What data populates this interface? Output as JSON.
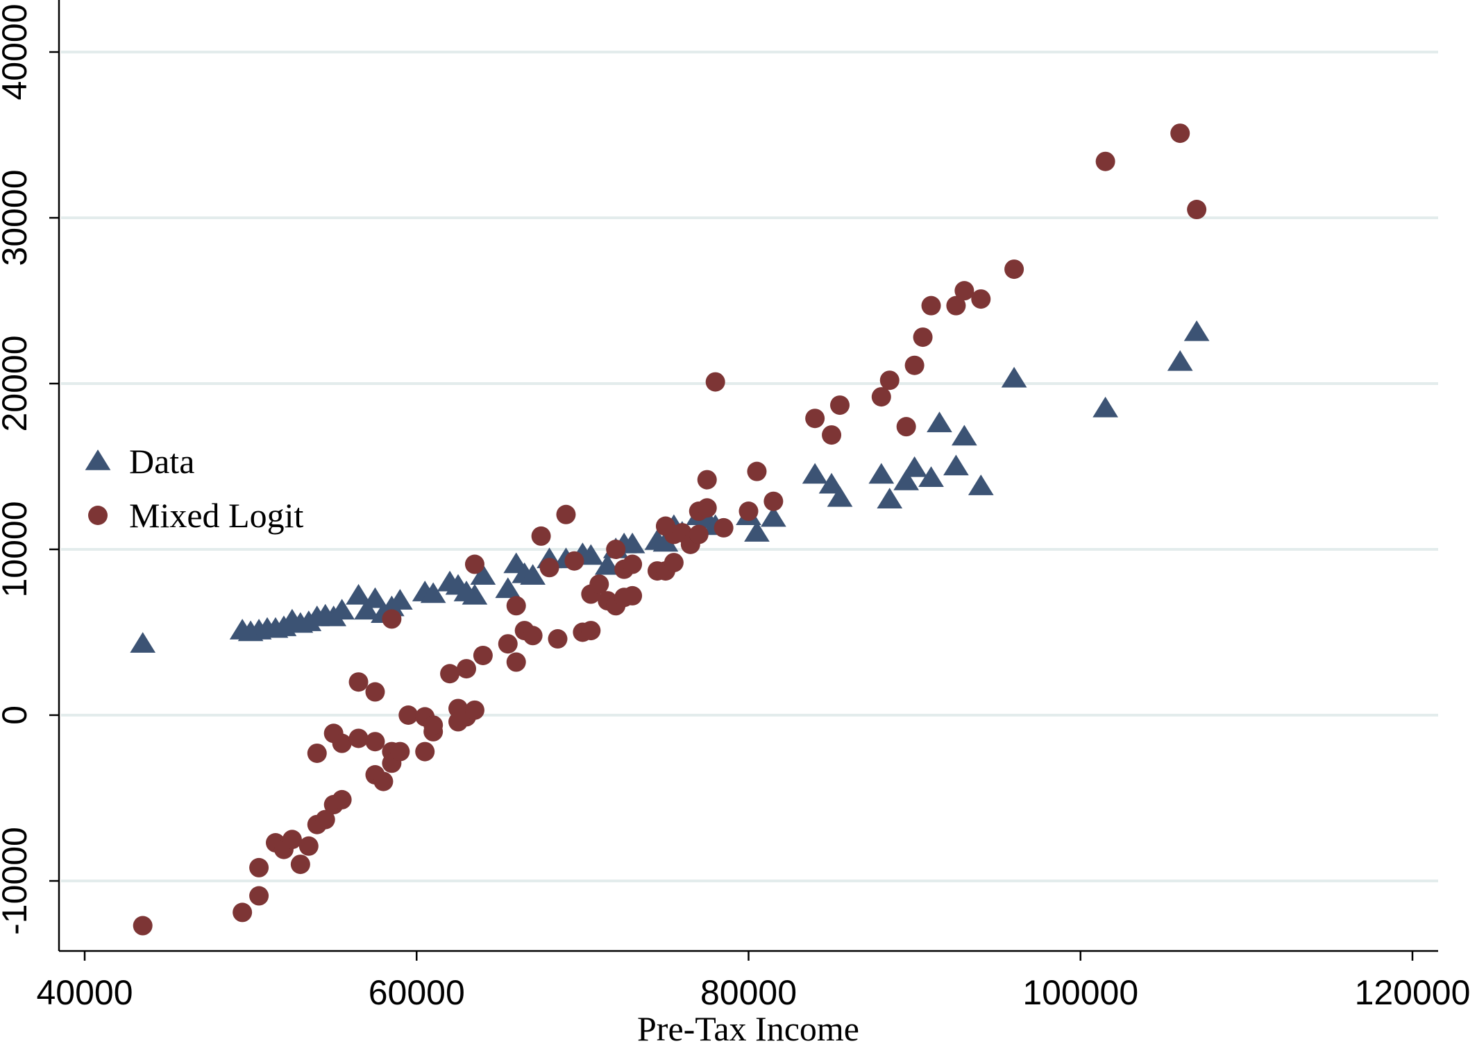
{
  "chart_data": {
    "type": "scatter",
    "title": "",
    "xlabel": "Pre-Tax Income",
    "ylabel": "",
    "xlim": [
      38000,
      122000
    ],
    "ylim": [
      -13900,
      42000
    ],
    "x_ticks": [
      40000,
      60000,
      80000,
      100000,
      120000
    ],
    "y_ticks": [
      -10000,
      0,
      10000,
      20000,
      30000,
      40000
    ],
    "grid": "horizontal",
    "legend_position": "left",
    "series": [
      {
        "name": "Data",
        "marker": "triangle",
        "color": "#3c5374",
        "points": [
          [
            43500,
            4300
          ],
          [
            49500,
            5100
          ],
          [
            50000,
            5000
          ],
          [
            50500,
            5100
          ],
          [
            51000,
            5200
          ],
          [
            51500,
            5200
          ],
          [
            52000,
            5300
          ],
          [
            52500,
            5700
          ],
          [
            53000,
            5500
          ],
          [
            53500,
            5600
          ],
          [
            54000,
            5900
          ],
          [
            54500,
            6000
          ],
          [
            55000,
            5900
          ],
          [
            55500,
            6300
          ],
          [
            56500,
            7200
          ],
          [
            57000,
            6300
          ],
          [
            57500,
            7000
          ],
          [
            58000,
            6100
          ],
          [
            58500,
            6500
          ],
          [
            59000,
            6900
          ],
          [
            60500,
            7400
          ],
          [
            61000,
            7300
          ],
          [
            62000,
            8000
          ],
          [
            62500,
            7800
          ],
          [
            63000,
            7400
          ],
          [
            63500,
            7200
          ],
          [
            64000,
            8400
          ],
          [
            65500,
            7600
          ],
          [
            66000,
            9100
          ],
          [
            66500,
            8500
          ],
          [
            67000,
            8400
          ],
          [
            68000,
            9400
          ],
          [
            69000,
            9400
          ],
          [
            70000,
            9700
          ],
          [
            70500,
            9600
          ],
          [
            71500,
            9000
          ],
          [
            72000,
            10000
          ],
          [
            72500,
            10300
          ],
          [
            73000,
            10300
          ],
          [
            74500,
            10500
          ],
          [
            75000,
            10400
          ],
          [
            75500,
            11400
          ],
          [
            76000,
            11000
          ],
          [
            77000,
            12000
          ],
          [
            77500,
            11800
          ],
          [
            78000,
            11400
          ],
          [
            80000,
            12000
          ],
          [
            80500,
            11000
          ],
          [
            81500,
            11900
          ],
          [
            84000,
            14500
          ],
          [
            85000,
            13900
          ],
          [
            85500,
            13100
          ],
          [
            88000,
            14500
          ],
          [
            88500,
            13000
          ],
          [
            89500,
            14100
          ],
          [
            90000,
            14900
          ],
          [
            91000,
            14300
          ],
          [
            91500,
            17600
          ],
          [
            92500,
            15000
          ],
          [
            93000,
            16800
          ],
          [
            94000,
            13800
          ],
          [
            96000,
            20300
          ],
          [
            101500,
            18500
          ],
          [
            106000,
            21300
          ],
          [
            107000,
            23100
          ]
        ]
      },
      {
        "name": "Mixed Logit",
        "marker": "circle",
        "color": "#7d3535",
        "points": [
          [
            43500,
            -12700
          ],
          [
            49500,
            -11900
          ],
          [
            50500,
            -9200
          ],
          [
            50500,
            -10900
          ],
          [
            51500,
            -7700
          ],
          [
            52000,
            -8100
          ],
          [
            52500,
            -7500
          ],
          [
            53000,
            -9000
          ],
          [
            53500,
            -7900
          ],
          [
            54000,
            -6600
          ],
          [
            54500,
            -6300
          ],
          [
            55000,
            -5400
          ],
          [
            55500,
            -5100
          ],
          [
            54000,
            -2300
          ],
          [
            55000,
            -1100
          ],
          [
            55500,
            -1700
          ],
          [
            56500,
            -1400
          ],
          [
            56500,
            2000
          ],
          [
            57500,
            1400
          ],
          [
            57500,
            -1600
          ],
          [
            57500,
            -3600
          ],
          [
            58000,
            -4000
          ],
          [
            58500,
            -2200
          ],
          [
            58500,
            -2900
          ],
          [
            58500,
            5800
          ],
          [
            59000,
            -2200
          ],
          [
            59500,
            0
          ],
          [
            60500,
            -2200
          ],
          [
            60500,
            -100
          ],
          [
            61000,
            -1000
          ],
          [
            61000,
            -600
          ],
          [
            62000,
            2500
          ],
          [
            62500,
            400
          ],
          [
            62500,
            -400
          ],
          [
            63000,
            -100
          ],
          [
            63000,
            2800
          ],
          [
            63500,
            300
          ],
          [
            63500,
            9100
          ],
          [
            64000,
            3600
          ],
          [
            65500,
            4300
          ],
          [
            66000,
            3200
          ],
          [
            66000,
            6600
          ],
          [
            66500,
            5100
          ],
          [
            67000,
            4800
          ],
          [
            67500,
            10800
          ],
          [
            68000,
            8900
          ],
          [
            68500,
            4600
          ],
          [
            69000,
            12100
          ],
          [
            69500,
            9300
          ],
          [
            70000,
            5000
          ],
          [
            70500,
            5100
          ],
          [
            70500,
            7300
          ],
          [
            71000,
            7900
          ],
          [
            71500,
            6900
          ],
          [
            72000,
            6600
          ],
          [
            72000,
            10000
          ],
          [
            72500,
            7100
          ],
          [
            72500,
            8800
          ],
          [
            73000,
            7200
          ],
          [
            73000,
            9100
          ],
          [
            74500,
            8700
          ],
          [
            75000,
            11400
          ],
          [
            75000,
            8700
          ],
          [
            75500,
            9200
          ],
          [
            75500,
            10900
          ],
          [
            76000,
            11000
          ],
          [
            76500,
            10300
          ],
          [
            77000,
            10900
          ],
          [
            77000,
            12300
          ],
          [
            77500,
            14200
          ],
          [
            77500,
            12500
          ],
          [
            78000,
            20100
          ],
          [
            78500,
            11300
          ],
          [
            80000,
            12300
          ],
          [
            80500,
            14700
          ],
          [
            81500,
            12900
          ],
          [
            84000,
            17900
          ],
          [
            85000,
            16900
          ],
          [
            85500,
            18700
          ],
          [
            88000,
            19200
          ],
          [
            88500,
            20200
          ],
          [
            89500,
            17400
          ],
          [
            90000,
            21100
          ],
          [
            90500,
            22800
          ],
          [
            91000,
            24700
          ],
          [
            92500,
            24700
          ],
          [
            93000,
            25600
          ],
          [
            94000,
            25100
          ],
          [
            96000,
            26900
          ],
          [
            101500,
            33400
          ],
          [
            106000,
            35100
          ],
          [
            107000,
            30500
          ]
        ]
      }
    ]
  }
}
